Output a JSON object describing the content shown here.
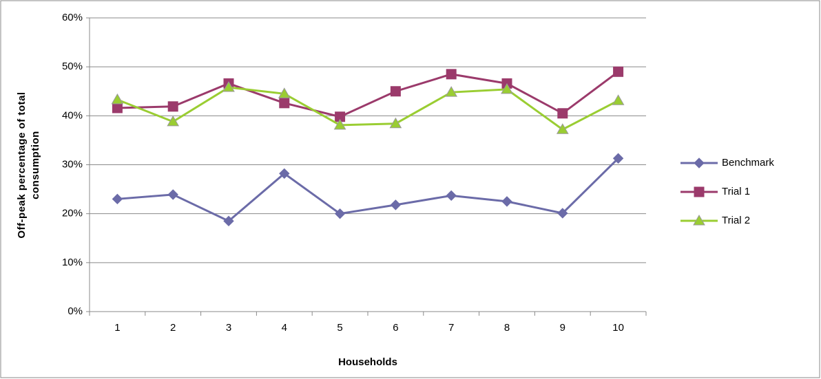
{
  "chart_data": {
    "type": "line",
    "x_label": "Households",
    "y_label": "Off-peak percentage of total consumption",
    "categories": [
      "1",
      "2",
      "3",
      "4",
      "5",
      "6",
      "7",
      "8",
      "9",
      "10"
    ],
    "series": [
      {
        "name": "Benchmark",
        "color": "#6b6ba8",
        "marker": "diamond",
        "values": [
          23.0,
          23.9,
          18.5,
          28.2,
          20.0,
          21.8,
          23.7,
          22.5,
          20.1,
          31.3
        ]
      },
      {
        "name": "Trial 1",
        "color": "#9b3a6b",
        "marker": "square",
        "values": [
          41.6,
          41.9,
          46.6,
          42.6,
          39.8,
          45.0,
          48.5,
          46.6,
          40.5,
          49.0
        ]
      },
      {
        "name": "Trial 2",
        "color": "#9acd32",
        "marker": "triangle",
        "values": [
          43.3,
          38.8,
          45.8,
          44.5,
          38.1,
          38.4,
          44.8,
          45.4,
          37.2,
          43.1
        ]
      }
    ],
    "ylim": [
      0,
      60
    ],
    "yticks": [
      {
        "value": 0,
        "label": "0%"
      },
      {
        "value": 10,
        "label": "10%"
      },
      {
        "value": 20,
        "label": "20%"
      },
      {
        "value": 30,
        "label": "30%"
      },
      {
        "value": 40,
        "label": "40%"
      },
      {
        "value": 50,
        "label": "50%"
      },
      {
        "value": 60,
        "label": "60%"
      }
    ],
    "grid": true,
    "legend": "right"
  }
}
